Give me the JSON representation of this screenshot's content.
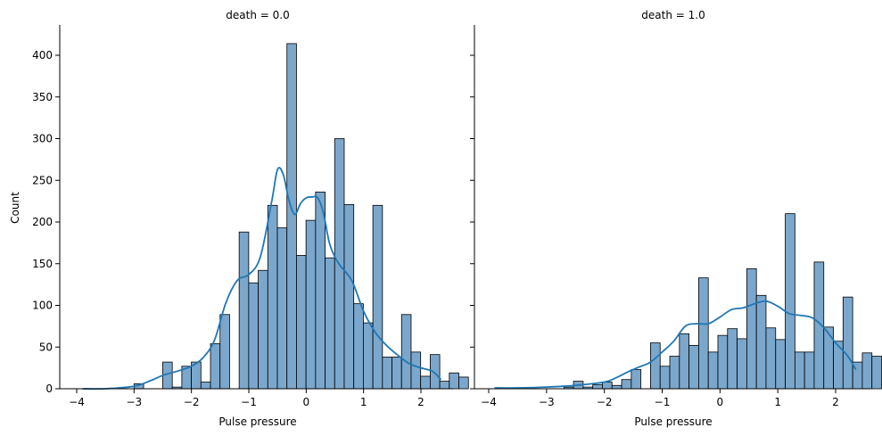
{
  "chart_data": [
    {
      "type": "bar",
      "title": "death = 0.0",
      "xlabel": "Pulse pressure",
      "ylabel": "Count",
      "xlim": [
        -4.2,
        2.55
      ],
      "ylim": [
        0,
        435
      ],
      "xticks": [
        -4,
        -3,
        -2,
        -1,
        0,
        1,
        2
      ],
      "yticks": [
        0,
        50,
        100,
        150,
        200,
        250,
        300,
        350,
        400
      ],
      "grid": false,
      "bar_color": "#7ba7cc",
      "kde_color": "#1f77b4",
      "bins": {
        "start": -3.0,
        "width": 0.1665,
        "counts": [
          6,
          0,
          0,
          32,
          2,
          27,
          32,
          8,
          54,
          89,
          0,
          188,
          127,
          142,
          220,
          193,
          414,
          160,
          202,
          236,
          157,
          300,
          221,
          102,
          79,
          220,
          38,
          38,
          89,
          44,
          15,
          41,
          9,
          19,
          14
        ]
      },
      "kde": {
        "x": [
          -3.9,
          -3.5,
          -3.0,
          -2.7,
          -2.5,
          -2.2,
          -2.0,
          -1.8,
          -1.6,
          -1.4,
          -1.2,
          -1.0,
          -0.8,
          -0.6,
          -0.5,
          -0.4,
          -0.3,
          -0.2,
          -0.1,
          0.0,
          0.1,
          0.2,
          0.3,
          0.4,
          0.5,
          0.6,
          0.8,
          1.0,
          1.2,
          1.4,
          1.6,
          1.8,
          2.0,
          2.2,
          2.35
        ],
        "y": [
          0,
          0,
          3,
          10,
          16,
          22,
          27,
          37,
          58,
          103,
          130,
          137,
          158,
          225,
          263,
          257,
          226,
          209,
          222,
          229,
          230,
          229,
          211,
          176,
          158,
          147,
          129,
          93,
          68,
          52,
          40,
          30,
          25,
          21,
          11
        ]
      }
    },
    {
      "type": "bar",
      "title": "death = 1.0",
      "xlabel": "Pulse pressure",
      "ylabel": "",
      "xlim": [
        -4.2,
        2.55
      ],
      "ylim": [
        0,
        435
      ],
      "xticks": [
        -4,
        -3,
        -2,
        -1,
        0,
        1,
        2
      ],
      "yticks": [
        0,
        50,
        100,
        150,
        200,
        250,
        300,
        350,
        400
      ],
      "grid": false,
      "bar_color": "#7ba7cc",
      "kde_color": "#1f77b4",
      "bins": {
        "start": -2.7,
        "width": 0.1665,
        "counts": [
          2,
          9,
          2,
          5,
          8,
          4,
          11,
          23,
          0,
          55,
          27,
          39,
          66,
          52,
          133,
          44,
          64,
          72,
          60,
          144,
          112,
          73,
          59,
          210,
          44,
          44,
          152,
          74,
          57,
          110,
          32,
          43,
          39
        ]
      },
      "kde": {
        "x": [
          -3.9,
          -3.5,
          -3.0,
          -2.5,
          -2.0,
          -1.8,
          -1.6,
          -1.4,
          -1.2,
          -1.0,
          -0.8,
          -0.6,
          -0.4,
          -0.2,
          0.0,
          0.2,
          0.4,
          0.6,
          0.8,
          1.0,
          1.2,
          1.4,
          1.6,
          1.8,
          2.0,
          2.2,
          2.35
        ],
        "y": [
          1,
          1,
          2,
          4,
          8,
          13,
          20,
          26,
          32,
          44,
          57,
          75,
          78,
          78,
          86,
          95,
          97,
          102,
          105,
          99,
          90,
          88,
          85,
          73,
          55,
          40,
          23
        ]
      }
    }
  ]
}
